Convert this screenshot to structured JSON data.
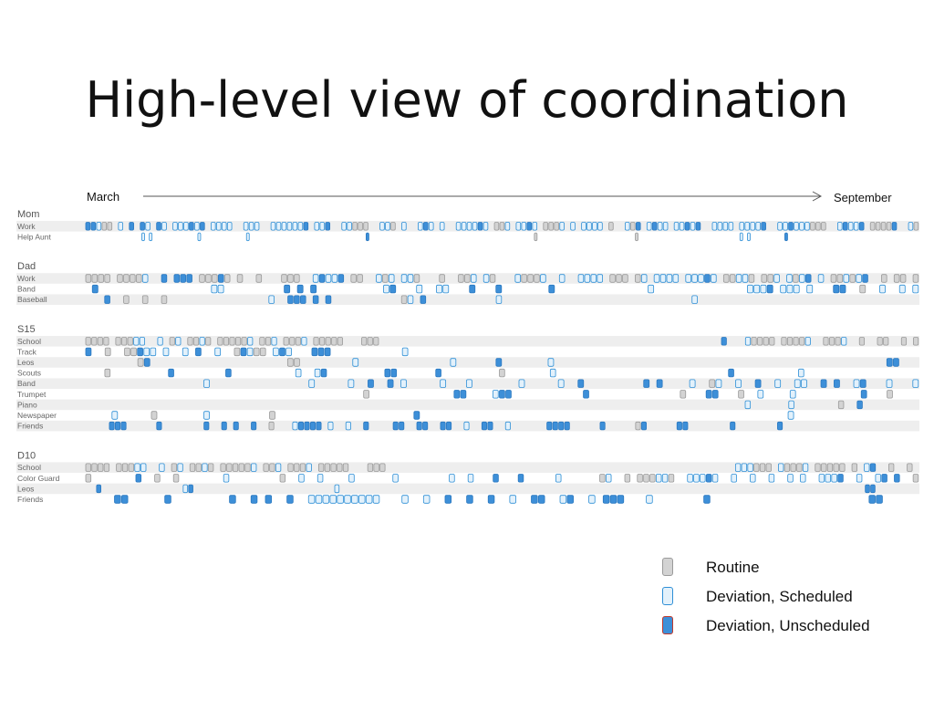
{
  "title": "High-level view of coordination",
  "timeline": {
    "start_label": "March",
    "end_label": "September"
  },
  "legend": [
    {
      "label": "Routine",
      "kind": "routine"
    },
    {
      "label": "Deviation, Scheduled",
      "kind": "scheduled"
    },
    {
      "label": "Deviation, Unscheduled",
      "kind": "unscheduled"
    }
  ],
  "colors": {
    "routine_fill": "#d3d3d3",
    "routine_stroke": "#9a9a9a",
    "scheduled_fill": "#e3f1fb",
    "scheduled_stroke": "#2e8fd6",
    "unscheduled_fill": "#3d8fd8",
    "unscheduled_stroke": "#2a78c0",
    "legend_unscheduled_stroke": "#c0392b",
    "row_band": "#eeeeee",
    "group_label": "#555555",
    "row_label": "#666666"
  },
  "chart_data": {
    "type": "timeline",
    "x_range": [
      "March",
      "September"
    ],
    "groups": [
      {
        "name": "Mom",
        "rows": [
          {
            "label": "Work",
            "marks": "UUSRR.S.U.US.US.SSSUSU.SSSS..SSS..SSSSSSU.SSU..SSRRR..SSR.S..SUS.S..SSSSUS.RRS.SSUS.RRRS.S.SSSS.R..SRU.SUSS.SSUSU..SSSS.SSSSU..SSUSSSRRR..SUSSU.RRRRU..SR"
          },
          {
            "label": "Help Aunt",
            "marks": "...............S.S............S............S...............................U............................................R..........................R...........................S.S.........U..................................."
          }
        ]
      },
      {
        "name": "Dad",
        "rows": [
          {
            "label": "Work",
            "marks": "RRRR.RRRRS..U.UUU.RRRUR.R..R...RRR..SUSSU.RR..SRS.SSR...R..RRS.SR...SRRRS..S..SSSS.RRR.RS.SSSS.SSSUS.RRSSR.RRS.SRSU.S.RRSRSU..R.RR.R"
          },
          {
            "label": "Band",
            "marks": ".U.................SS.........U.U.U..........SU...S..SS...U...U.......U..............S..............SSSU.SSS.S...UU..R..S..S.S"
          },
          {
            "label": "Baseball",
            "marks": "...U..R..R..R................S..UUU.U.U...........RS.U...........S..............................S..................................."
          }
        ]
      },
      {
        "name": "S15",
        "rows": [
          {
            "label": "School",
            "marks": "RRRR.RRRSS..S.RS.RRSR.RRRRRS.RRS.RRRS.RRRRR...RRR.........................................................U...SRRRR.RRRRS..RRRS..R..RR..R.R"
          },
          {
            "label": "Track",
            "marks": "U..R..RRUSS.S..S.U..S..RUSRR.SUS...UUU...........S..............................................................................."
          },
          {
            "label": "Leos",
            "marks": "........RU.....................RR........S..............S......U.......S...................................................UU..."
          },
          {
            "label": "Scouts",
            "marks": "...R.........U........U..........S..SU.........UU......U.........R.......S...........................U..........S.................."
          },
          {
            "label": "Band",
            "marks": "..................S...............S.....S..U..U.S.....S...S.......S.....S..U.........U.U....S..RS..S..U..S..SS..U.U..SU...S...S"
          },
          {
            "label": "Trumpet",
            "marks": "...........................................R.............UU....SUU...........U..............R...UU...R..S....S..........U...R...."
          },
          {
            "label": "Piano",
            "marks": "..........................................................................................................S......S.......R..U........."
          },
          {
            "label": "Newspaper",
            "marks": "....S.....R.......S.........R.....................U........................................................S..................."
          },
          {
            "label": "Friends",
            "marks": "....UUU.....U.......U..U.U..U..R...SUUUU.S..S..U....UU..UU..UU..S..UU..S......UUUU.....U.....RU.....UU.......U.......U......................."
          }
        ]
      },
      {
        "name": "D10",
        "rows": [
          {
            "label": "School",
            "marks": "RRRR.RRRSS..S.RS.RRSR.RRRRRS.RRS.RRRS.RRRRR...RRR.........................................................SSSRRR.SRRRS.RRRRR.R.SU..R..R."
          },
          {
            "label": "Color Guard",
            "marks": "R.......U..R..R.......S........R..S..S....S......S........S..S...U...U.....S......RS..R.RRRSSR..SSSUS..S..S..S..S.S..SSSU..S..SU.U..R"
          },
          {
            "label": "Leos",
            "marks": "..U...............SU..........................S.................................................................................................UU........"
          },
          {
            "label": "Friends",
            "marks": "....UU.....U........U..U.U..U..SSSSSSSSSS...S..S..U..U..U..S..UU..SU..S.UUU...S.......U......................UU....."
          }
        ]
      }
    ]
  }
}
